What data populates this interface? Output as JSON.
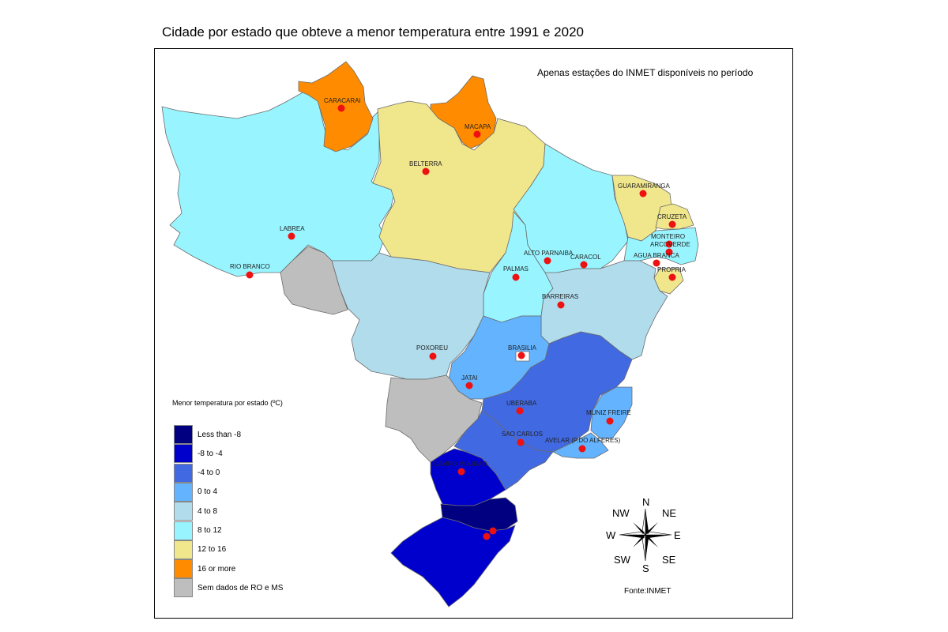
{
  "title": "Cidade por estado que obteve a menor temperatura entre 1991 e 2020",
  "subtitle": "Apenas estações do INMET disponíveis no período",
  "source": "Fonte:INMET",
  "legend": {
    "title": "Menor temperatura por estado (ºC)",
    "items": [
      {
        "label": "Less than -8",
        "color": "#000080"
      },
      {
        "label": "-8 to -4",
        "color": "#0000cd"
      },
      {
        "label": "-4 to 0",
        "color": "#4169e1"
      },
      {
        "label": "0 to 4",
        "color": "#63b3ff"
      },
      {
        "label": "4 to 8",
        "color": "#b0dcec"
      },
      {
        "label": "8 to 12",
        "color": "#98f5ff"
      },
      {
        "label": "12 to 16",
        "color": "#f0e68c"
      },
      {
        "label": "16 or more",
        "color": "#ff8c00"
      },
      {
        "label": "Sem dados de RO e MS",
        "color": "#bebebe"
      }
    ]
  },
  "compass": {
    "n": "N",
    "ne": "NE",
    "e": "E",
    "se": "SE",
    "s": "S",
    "sw": "SW",
    "w": "W",
    "nw": "NW"
  },
  "cities": [
    {
      "name": "CARACARAI"
    },
    {
      "name": "MACAPA"
    },
    {
      "name": "BELTERRA"
    },
    {
      "name": "LABREA"
    },
    {
      "name": "RIO BRANCO"
    },
    {
      "name": "GUARAMIRANGA"
    },
    {
      "name": "CRUZETA"
    },
    {
      "name": "MONTEIRO"
    },
    {
      "name": "ARCOVERDE"
    },
    {
      "name": "AGUA BRANCA"
    },
    {
      "name": "PROPRIA"
    },
    {
      "name": "ALTO PARNAIBA"
    },
    {
      "name": "CARACOL"
    },
    {
      "name": "PALMAS"
    },
    {
      "name": "BARREIRAS"
    },
    {
      "name": "POXOREU"
    },
    {
      "name": "BRASILIA"
    },
    {
      "name": "JATAI"
    },
    {
      "name": "UBERABA"
    },
    {
      "name": "MUNIZ FREIRE"
    },
    {
      "name": "SAO CARLOS"
    },
    {
      "name": "AVELAR (P.DO ALFERES)"
    },
    {
      "name": "CAMPO MOURAO"
    }
  ]
}
